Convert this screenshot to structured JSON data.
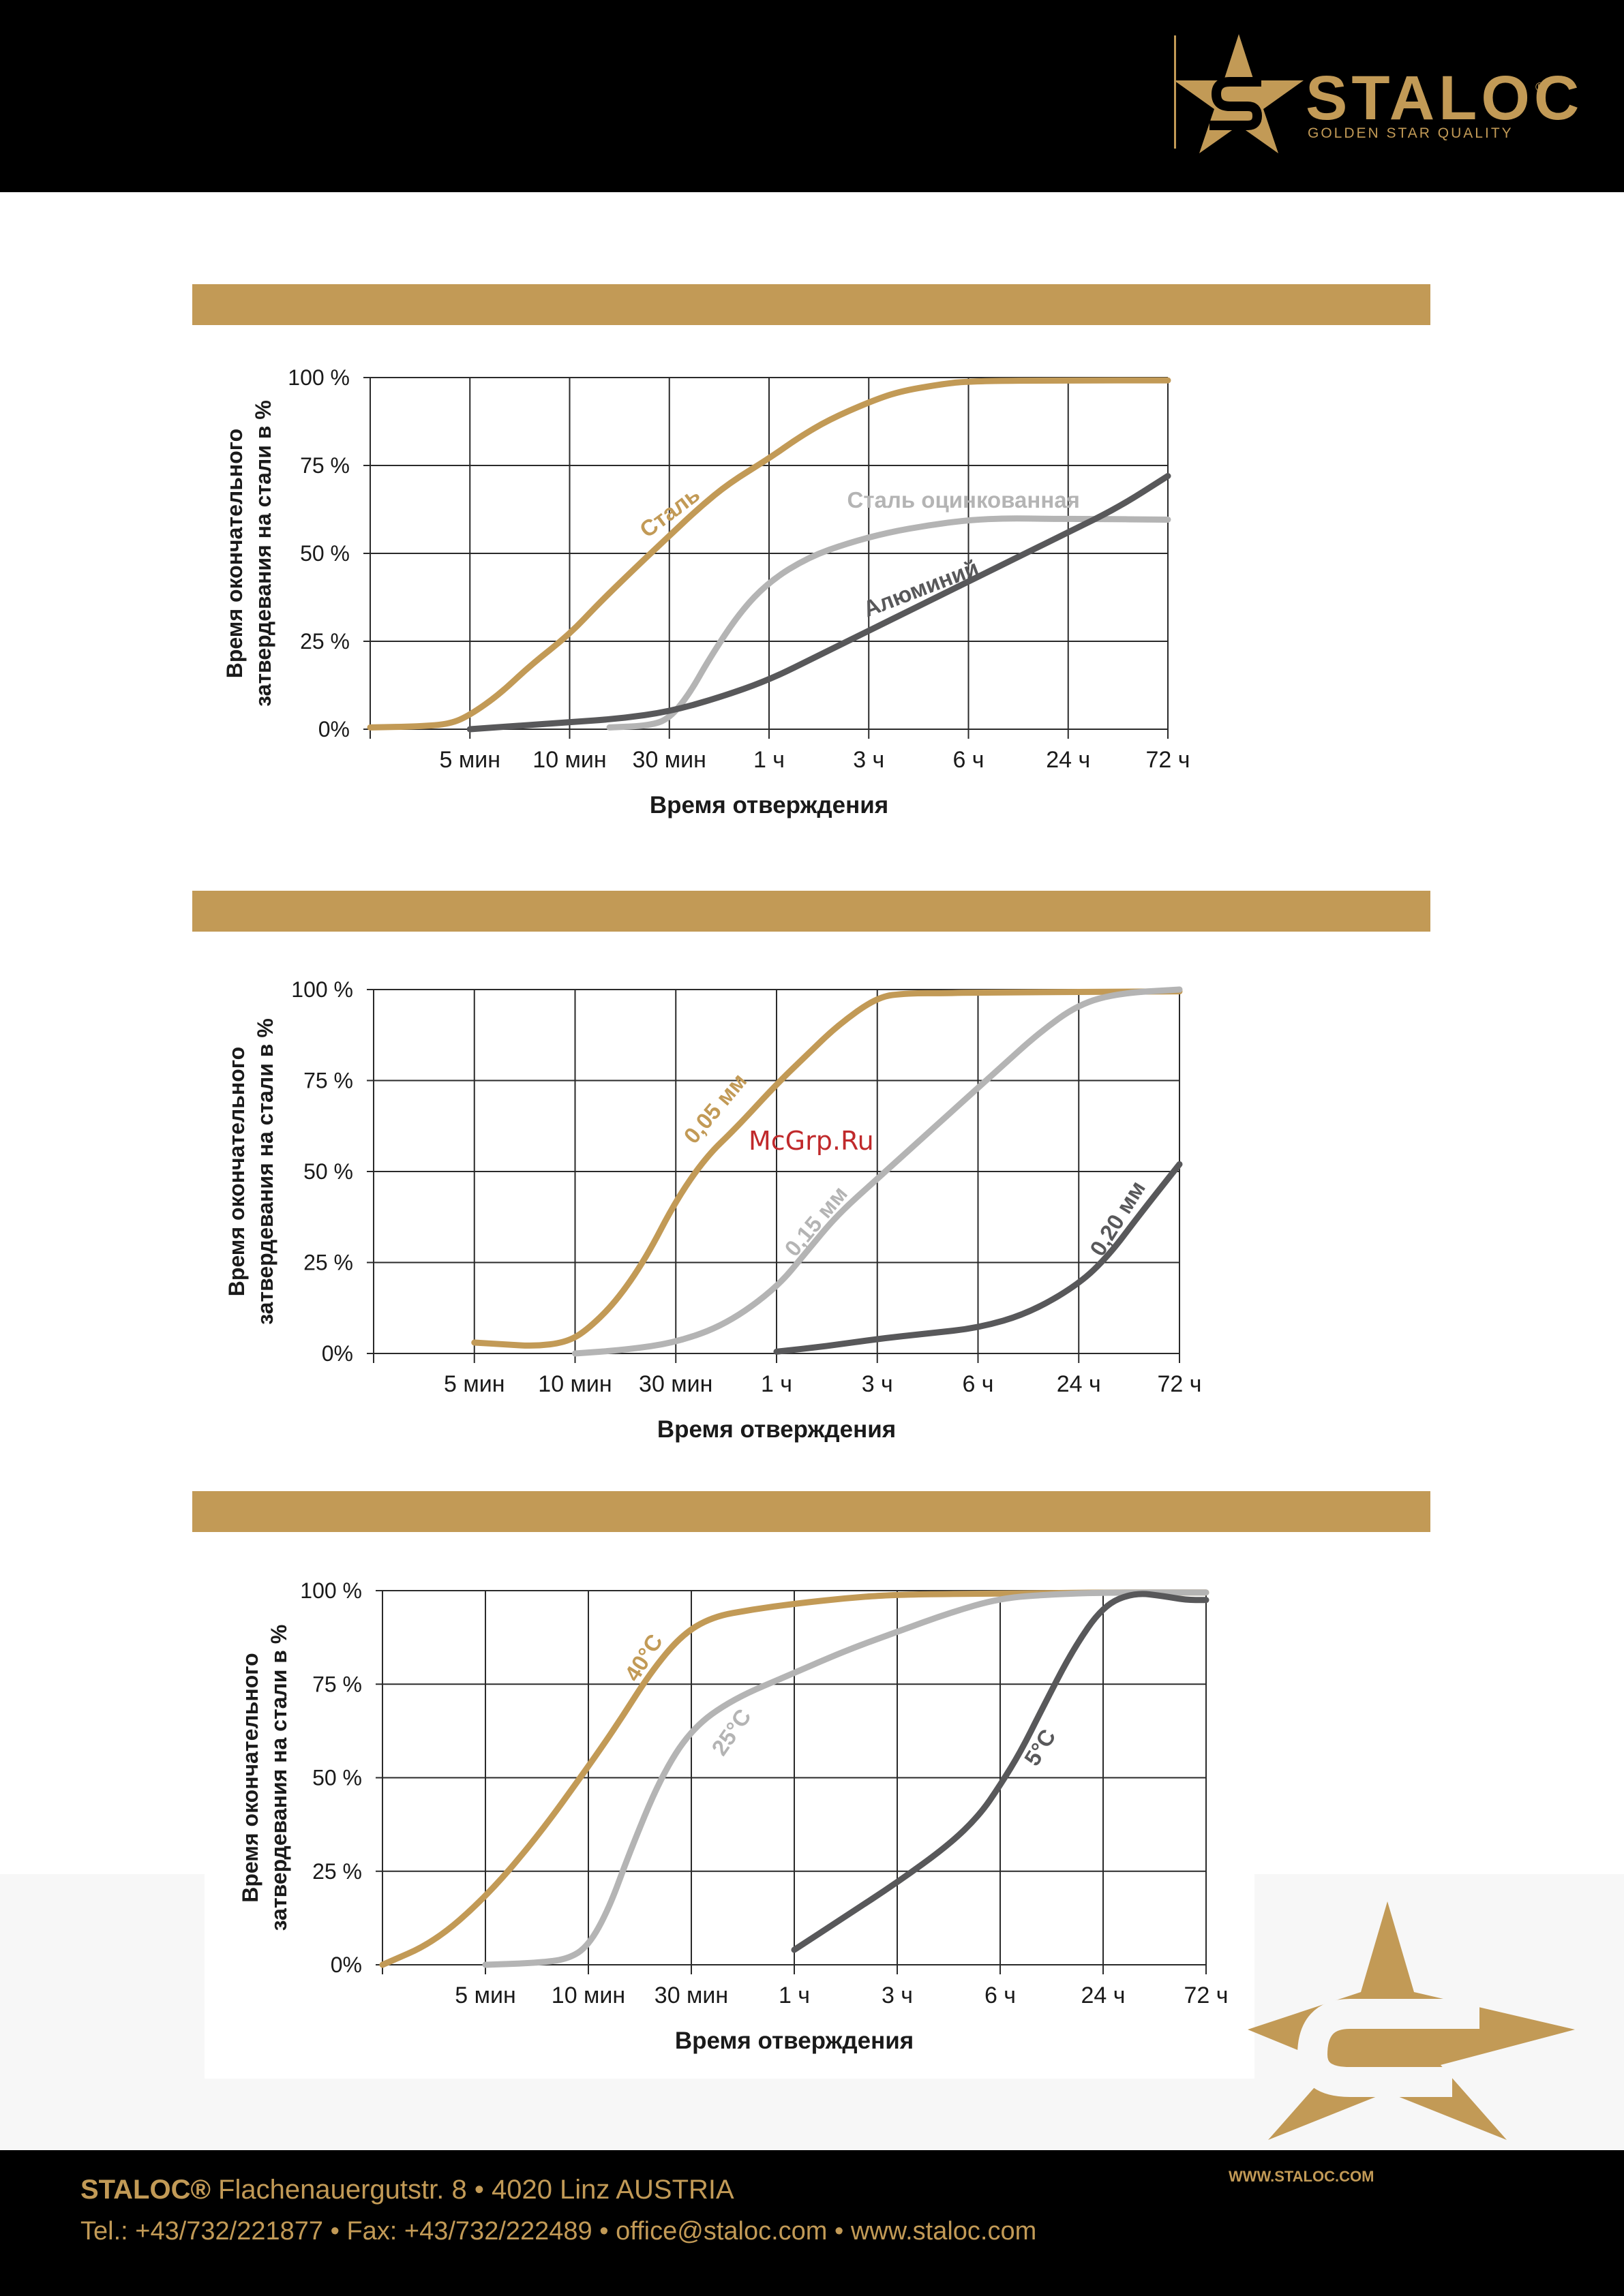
{
  "brand": {
    "name": "STALOC",
    "reg": "®",
    "tagline": "GOLDEN STAR QUALITY",
    "url": "WWW.STALOC.COM",
    "color": "#c29a56"
  },
  "footer": {
    "company": "STALOC®",
    "address": " Flachenauergutstr. 8 • 4020 Linz AUSTRIA",
    "contacts": "Tel.: +43/732/221877 • Fax: +43/732/222489 • office@staloc.com • www.staloc.com"
  },
  "watermark": "McGrp.Ru",
  "chart_data": [
    {
      "type": "line",
      "title": "",
      "xlabel": "Время отверждения",
      "ylabel": [
        "Время окончательного",
        "затвердевания на стали в %"
      ],
      "categories": [
        "",
        "5 мин",
        "10 мин",
        "30 мин",
        "1 ч",
        "3 ч",
        "6 ч",
        "24 ч",
        "72 ч"
      ],
      "yticks": [
        "0%",
        "25 %",
        "50 %",
        "75 %",
        "100 %"
      ],
      "ylim": [
        0,
        100
      ],
      "series": [
        {
          "name": "Сталь",
          "color": "#c29a56",
          "label_at": [
            3.05,
            60
          ],
          "label_angle": -37,
          "points": [
            [
              0,
              0.5
            ],
            [
              0.5,
              0.8
            ],
            [
              0.8,
              1.5
            ],
            [
              1.0,
              4
            ],
            [
              1.3,
              10
            ],
            [
              1.6,
              18
            ],
            [
              2.0,
              27
            ],
            [
              2.3,
              36
            ],
            [
              2.7,
              47
            ],
            [
              3.0,
              55
            ],
            [
              3.3,
              63
            ],
            [
              3.6,
              70
            ],
            [
              4.0,
              77
            ],
            [
              4.3,
              83
            ],
            [
              4.6,
              88
            ],
            [
              5.0,
              93
            ],
            [
              5.3,
              96
            ],
            [
              5.7,
              98
            ],
            [
              6.0,
              99
            ],
            [
              7.0,
              99.2
            ],
            [
              8.0,
              99.2
            ]
          ]
        },
        {
          "name": "Сталь оцинкованная",
          "color": "#b4b4b4",
          "label_at": [
            5.95,
            63
          ],
          "label_angle": 0,
          "points": [
            [
              2.4,
              0.5
            ],
            [
              2.8,
              1
            ],
            [
              3.0,
              3
            ],
            [
              3.2,
              10
            ],
            [
              3.4,
              20
            ],
            [
              3.7,
              33
            ],
            [
              4.0,
              42
            ],
            [
              4.4,
              49
            ],
            [
              4.8,
              53
            ],
            [
              5.2,
              56
            ],
            [
              5.6,
              58
            ],
            [
              6.0,
              59.5
            ],
            [
              6.4,
              60
            ],
            [
              6.8,
              59.8
            ],
            [
              7.2,
              59.8
            ],
            [
              8.0,
              59.6
            ]
          ]
        },
        {
          "name": "Алюминий",
          "color": "#58585a",
          "label_at": [
            5.55,
            38
          ],
          "label_angle": -21,
          "points": [
            [
              1.0,
              0
            ],
            [
              1.5,
              1
            ],
            [
              2.0,
              2
            ],
            [
              2.5,
              3
            ],
            [
              3.0,
              5
            ],
            [
              3.5,
              9
            ],
            [
              4.0,
              14
            ],
            [
              4.5,
              21
            ],
            [
              5.0,
              28
            ],
            [
              5.5,
              35
            ],
            [
              6.0,
              42
            ],
            [
              6.5,
              49
            ],
            [
              7.0,
              56
            ],
            [
              7.5,
              63
            ],
            [
              8.0,
              72
            ]
          ]
        }
      ]
    },
    {
      "type": "line",
      "title": "",
      "xlabel": "Время отверждения",
      "ylabel": [
        "Время окончательного",
        "затвердевания на стали в %"
      ],
      "categories": [
        "",
        "5 мин",
        "10 мин",
        "30 мин",
        "1 ч",
        "3 ч",
        "6 ч",
        "24 ч",
        "72 ч"
      ],
      "yticks": [
        "0%",
        "25 %",
        "50 %",
        "75 %",
        "100 %"
      ],
      "ylim": [
        0,
        100
      ],
      "series": [
        {
          "name": "0,05 мм",
          "color": "#c29a56",
          "label_at": [
            3.45,
            66
          ],
          "label_angle": -50,
          "points": [
            [
              1.0,
              3
            ],
            [
              1.3,
              2.5
            ],
            [
              1.6,
              2
            ],
            [
              1.9,
              3
            ],
            [
              2.1,
              6
            ],
            [
              2.4,
              14
            ],
            [
              2.7,
              26
            ],
            [
              3.0,
              42
            ],
            [
              3.3,
              54
            ],
            [
              3.6,
              62
            ],
            [
              4.0,
              74
            ],
            [
              4.3,
              82
            ],
            [
              4.6,
              90
            ],
            [
              5.0,
              98
            ],
            [
              5.3,
              99
            ],
            [
              5.7,
              99
            ],
            [
              6.0,
              99.2
            ],
            [
              8.0,
              99.5
            ]
          ]
        },
        {
          "name": "0,15 мм",
          "color": "#b4b4b4",
          "label_at": [
            4.45,
            35
          ],
          "label_angle": -50,
          "points": [
            [
              2.0,
              0
            ],
            [
              2.5,
              1
            ],
            [
              3.0,
              3
            ],
            [
              3.5,
              8
            ],
            [
              4.0,
              18
            ],
            [
              4.3,
              28
            ],
            [
              4.6,
              38
            ],
            [
              5.0,
              48
            ],
            [
              5.4,
              58
            ],
            [
              5.8,
              68
            ],
            [
              6.2,
              78
            ],
            [
              6.6,
              88
            ],
            [
              7.0,
              96
            ],
            [
              7.4,
              99
            ],
            [
              8.0,
              100
            ]
          ]
        },
        {
          "name": "0,20 мм",
          "color": "#58585a",
          "label_at": [
            7.45,
            36
          ],
          "label_angle": -58,
          "points": [
            [
              4.0,
              0.5
            ],
            [
              4.5,
              2
            ],
            [
              5.0,
              4
            ],
            [
              5.5,
              5.5
            ],
            [
              6.0,
              7
            ],
            [
              6.5,
              11
            ],
            [
              7.0,
              19
            ],
            [
              7.3,
              27
            ],
            [
              7.6,
              38
            ],
            [
              8.0,
              52
            ]
          ]
        }
      ]
    },
    {
      "type": "line",
      "title": "",
      "xlabel": "Время отверждения",
      "ylabel": [
        "Время окончательного",
        "затвердевания на стали в %"
      ],
      "categories": [
        "",
        "5 мин",
        "10 мин",
        "30 мин",
        "1 ч",
        "3 ч",
        "6 ч",
        "24 ч",
        "72 ч"
      ],
      "yticks": [
        "0%",
        "25 %",
        "50 %",
        "75 %",
        "100 %"
      ],
      "ylim": [
        0,
        100
      ],
      "series": [
        {
          "name": "40°C",
          "color": "#c29a56",
          "label_at": [
            2.6,
            81
          ],
          "label_angle": -58,
          "points": [
            [
              0,
              0
            ],
            [
              0.5,
              6
            ],
            [
              1.0,
              18
            ],
            [
              1.5,
              34
            ],
            [
              2.0,
              53
            ],
            [
              2.3,
              65
            ],
            [
              2.6,
              78
            ],
            [
              2.9,
              88
            ],
            [
              3.2,
              93
            ],
            [
              3.6,
              95
            ],
            [
              4.0,
              96.5
            ],
            [
              4.5,
              98
            ],
            [
              5.0,
              99
            ],
            [
              6.0,
              99.2
            ],
            [
              7.0,
              99.5
            ],
            [
              8.0,
              99.5
            ]
          ]
        },
        {
          "name": "25°C",
          "color": "#b4b4b4",
          "label_at": [
            3.45,
            61
          ],
          "label_angle": -55,
          "points": [
            [
              1.0,
              0
            ],
            [
              1.5,
              0.5
            ],
            [
              1.8,
              1.5
            ],
            [
              2.0,
              5
            ],
            [
              2.2,
              15
            ],
            [
              2.4,
              30
            ],
            [
              2.7,
              50
            ],
            [
              3.0,
              63
            ],
            [
              3.4,
              71
            ],
            [
              4.0,
              78
            ],
            [
              4.5,
              84
            ],
            [
              5.0,
              89
            ],
            [
              5.5,
              94
            ],
            [
              6.0,
              98
            ],
            [
              6.5,
              99
            ],
            [
              7.0,
              99.5
            ],
            [
              8.0,
              99.5
            ]
          ]
        },
        {
          "name": "5°C",
          "color": "#58585a",
          "label_at": [
            6.45,
            57
          ],
          "label_angle": -58,
          "points": [
            [
              4.0,
              4
            ],
            [
              4.5,
              13
            ],
            [
              5.0,
              22
            ],
            [
              5.5,
              32
            ],
            [
              5.8,
              40
            ],
            [
              6.0,
              48
            ],
            [
              6.2,
              57
            ],
            [
              6.4,
              68
            ],
            [
              6.7,
              84
            ],
            [
              7.0,
              96
            ],
            [
              7.3,
              99.5
            ],
            [
              7.6,
              98.5
            ],
            [
              7.8,
              97.5
            ],
            [
              8.0,
              97.5
            ]
          ]
        }
      ]
    }
  ]
}
